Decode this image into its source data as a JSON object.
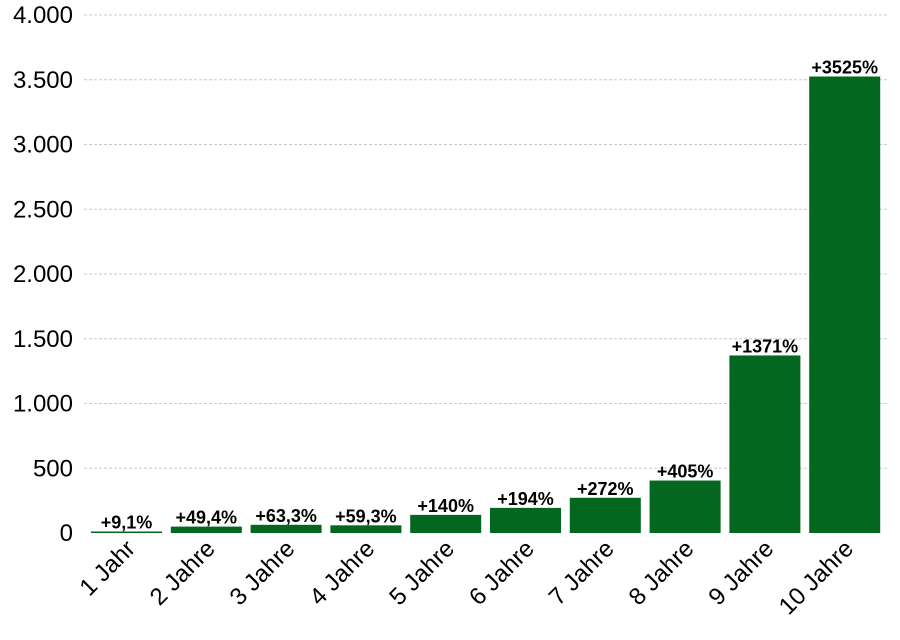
{
  "chart_data": {
    "type": "bar",
    "categories": [
      "1 Jahr",
      "2 Jahre",
      "3 Jahre",
      "4 Jahre",
      "5 Jahre",
      "6 Jahre",
      "7 Jahre",
      "8 Jahre",
      "9 Jahre",
      "10 Jahre"
    ],
    "values": [
      9.1,
      49.4,
      63.3,
      59.3,
      140,
      194,
      272,
      405,
      1371,
      3525
    ],
    "data_labels": [
      "+9,1%",
      "+49,4%",
      "+63,3%",
      "+59,3%",
      "+140%",
      "+194%",
      "+272%",
      "+405%",
      "+1371%",
      "+3525%"
    ],
    "yticks": [
      0,
      500,
      1000,
      1500,
      2000,
      2500,
      3000,
      3500,
      4000
    ],
    "ytick_labels": [
      "0",
      "500",
      "1.000",
      "1.500",
      "2.000",
      "2.500",
      "3.000",
      "3.500",
      "4.000"
    ],
    "ylim": [
      0,
      4000
    ],
    "grid": true,
    "legend": "none",
    "bar_color": "#036720",
    "title": "",
    "xlabel": "",
    "ylabel": ""
  }
}
